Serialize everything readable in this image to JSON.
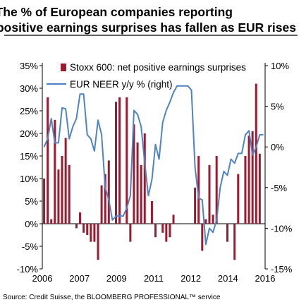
{
  "chart_data": {
    "type": "bar+line",
    "title_line1": "The % of European companies reporting",
    "title_line2": "positive earnings surprises has fallen as EUR rises",
    "source": "Source: Credit Suisse, the BLOOMBERG PROFESSIONAL™ service",
    "x_ticks": [
      "2006",
      "2007",
      "2009",
      "2011",
      "2012",
      "2014",
      "2016"
    ],
    "y_left_ticks": [
      "35%",
      "30%",
      "25%",
      "20%",
      "15%",
      "10%",
      "5%",
      "0%",
      "-5%",
      "-10%"
    ],
    "y_right_ticks": [
      "10%",
      "5%",
      "0%",
      "-5%",
      "-10%",
      "-15%"
    ],
    "ylim_left": [
      -10,
      35
    ],
    "ylim_right": [
      -15,
      10
    ],
    "xlim": [
      0,
      62
    ],
    "series": [
      {
        "name": "Stoxx 600: net positive earnings surprises",
        "kind": "bar",
        "axis": "left",
        "color": "#9b1b30",
        "values": [
          10,
          28,
          1,
          23,
          12,
          15,
          19,
          13,
          0,
          -1,
          2.5,
          -2,
          -2.5,
          -4,
          -4,
          -8,
          8.5,
          11,
          14,
          0,
          27,
          28,
          0,
          28,
          -4,
          22,
          18,
          13,
          20,
          0,
          5,
          -3,
          0,
          -2,
          -4,
          -3,
          2,
          0,
          0,
          0,
          0,
          0,
          8,
          15,
          -6,
          1,
          13,
          2,
          15,
          0,
          0,
          -4,
          0,
          -8,
          11,
          0,
          15,
          19.5,
          20.5,
          31,
          15.5,
          0
        ]
      },
      {
        "name": "EUR NEER y/y % (right)",
        "kind": "line",
        "axis": "right",
        "color": "#4f84c4",
        "values": [
          0,
          1,
          3.5,
          0.5,
          0.5,
          4.8,
          4.7,
          1,
          2.5,
          3.5,
          6.5,
          6.5,
          1.5,
          1,
          -0.5,
          3.3,
          1.5,
          -5,
          -6.5,
          -9,
          -8.5,
          -8.5,
          -8.5,
          -7.5,
          -6,
          4.5,
          4,
          2.5,
          -2,
          -6,
          -4,
          0.3,
          -1.5,
          3,
          4.5,
          5.5,
          6.7,
          7.5,
          7.5,
          7.5,
          7.5,
          7,
          -2.5,
          -6.3,
          -6.5,
          -12,
          -10,
          -10.5,
          -9,
          -5,
          -3,
          -3.5,
          -1.5,
          -2,
          -0.8,
          -0.8,
          1.5,
          2,
          -1,
          0,
          1.5,
          1.5
        ]
      }
    ],
    "legend_position": "top-left",
    "grid": false
  }
}
